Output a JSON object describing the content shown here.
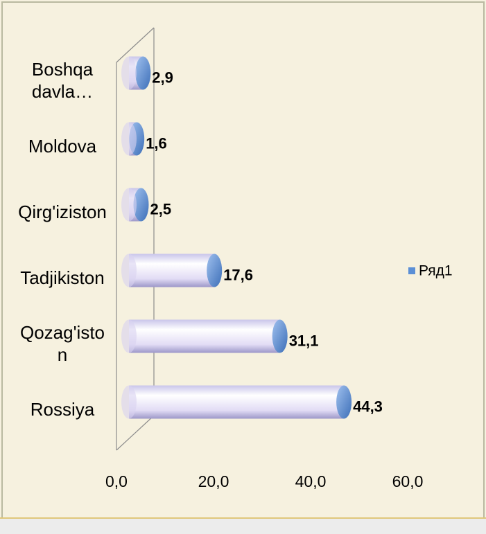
{
  "chart_data": {
    "type": "bar",
    "orientation": "horizontal",
    "categories": [
      "Boshqa davla…",
      "Moldova",
      "Qirg'iziston",
      "Tadjikiston",
      "Qozag'iston",
      "Rossiya"
    ],
    "series": [
      {
        "name": "Ряд1",
        "color": "#5b8fd6",
        "values": [
          2.9,
          1.6,
          2.5,
          17.6,
          31.1,
          44.3
        ],
        "value_labels": [
          "2,9",
          "1,6",
          "2,5",
          "17,6",
          "31,1",
          "44,3"
        ]
      }
    ],
    "xlim": [
      0,
      60
    ],
    "xticks": [
      {
        "value": 0,
        "label": "0,0"
      },
      {
        "value": 20,
        "label": "20,0"
      },
      {
        "value": 40,
        "label": "40,0"
      },
      {
        "value": 60,
        "label": "60,0"
      }
    ],
    "legend": "right"
  }
}
